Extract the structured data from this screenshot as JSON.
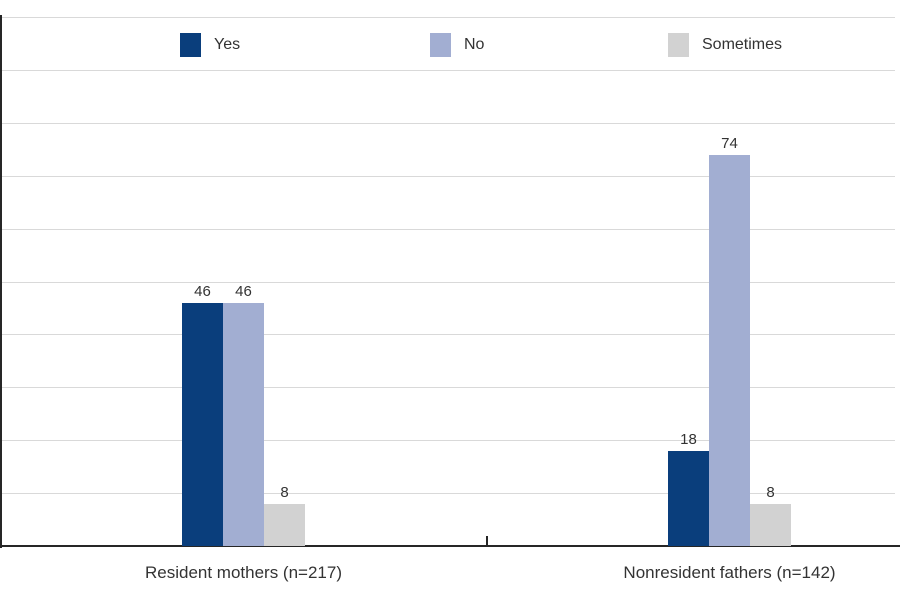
{
  "chart_data": {
    "type": "bar",
    "title": "",
    "categories": [
      "Resident mothers (n=217)",
      "Nonresident fathers (n=142)"
    ],
    "series": [
      {
        "name": "Yes",
        "color": "#0a3e7c",
        "values": [
          46,
          18
        ]
      },
      {
        "name": "No",
        "color": "#a2aed2",
        "values": [
          46,
          74
        ]
      },
      {
        "name": "Sometimes",
        "color": "#d2d2d2",
        "values": [
          8,
          8
        ]
      }
    ],
    "ylim": [
      0,
      100
    ],
    "gridline_step": 10,
    "grid": true,
    "y_tick_labels_shown": false,
    "legend_position": "top-inside",
    "value_labels_shown": true,
    "axis_color": "#262626",
    "gridline_color": "#d9d9d9",
    "text_color": "#333333"
  }
}
